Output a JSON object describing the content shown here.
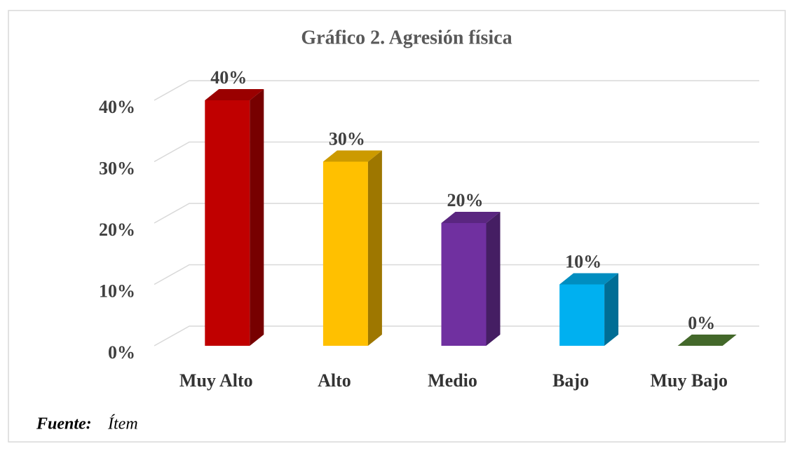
{
  "chart_data": {
    "type": "bar3d",
    "title": "Gráfico 2. Agresión física",
    "categories": [
      "Muy Alto",
      "Alto",
      "Medio",
      "Bajo",
      "Muy Bajo"
    ],
    "values": [
      40,
      30,
      20,
      10,
      0
    ],
    "value_labels": [
      "40%",
      "30%",
      "20%",
      "10%",
      "0%"
    ],
    "colors": [
      "#c00000",
      "#ffc000",
      "#7030a0",
      "#00b0f0",
      "#548235"
    ],
    "ylim": [
      0,
      40
    ],
    "yticks": [
      {
        "value": 0,
        "label": "0%"
      },
      {
        "value": 10,
        "label": "10%"
      },
      {
        "value": 20,
        "label": "20%"
      },
      {
        "value": 30,
        "label": "30%"
      },
      {
        "value": 40,
        "label": "40%"
      }
    ],
    "grid": true,
    "source_label": "Fuente:",
    "source": "Ítem"
  }
}
